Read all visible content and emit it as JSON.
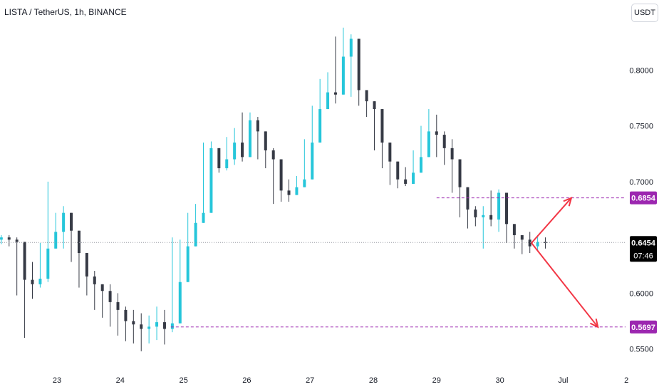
{
  "header": {
    "title": "LISTA / TetherUS, 1h, BINANCE",
    "currency_label": "USDT"
  },
  "colors": {
    "up": "#26c6da",
    "down": "#363a45",
    "current_line": "#9598a1",
    "target": "#9c27b0",
    "arrow": "#f23645",
    "last_price_bg": "#000000"
  },
  "chart_data": {
    "type": "candlestick",
    "symbol": "LISTA / TetherUS",
    "interval": "1h",
    "exchange": "BINANCE",
    "ylim": [
      0.537,
      0.85
    ],
    "y_ticks": [
      {
        "value": 0.8,
        "label": "0.8000"
      },
      {
        "value": 0.75,
        "label": "0.7500"
      },
      {
        "value": 0.7,
        "label": "0.7000"
      },
      {
        "value": 0.6,
        "label": "0.6000"
      },
      {
        "value": 0.55,
        "label": "0.5500"
      }
    ],
    "x_ticks": [
      "23",
      "24",
      "25",
      "26",
      "27",
      "28",
      "29",
      "30",
      "Jul",
      "2"
    ],
    "x_tick_positions": [
      1,
      2,
      3,
      4,
      5,
      6,
      7,
      8,
      9,
      10
    ],
    "x_range": [
      0.12,
      10.05
    ],
    "x_start": 0.12,
    "x_end": 8.72,
    "close": [
      0.65,
      0.648,
      0.646,
      0.612,
      0.608,
      0.613,
      0.64,
      0.655,
      0.672,
      0.656,
      0.636,
      0.615,
      0.608,
      0.602,
      0.592,
      0.585,
      0.575,
      0.572,
      0.568,
      0.57,
      0.574,
      0.568,
      0.573,
      0.61,
      0.642,
      0.663,
      0.672,
      0.73,
      0.712,
      0.72,
      0.735,
      0.722,
      0.755,
      0.745,
      0.728,
      0.72,
      0.692,
      0.688,
      0.695,
      0.702,
      0.735,
      0.765,
      0.78,
      0.778,
      0.812,
      0.828,
      0.782,
      0.772,
      0.765,
      0.735,
      0.718,
      0.702,
      0.698,
      0.708,
      0.722,
      0.745,
      0.742,
      0.73,
      0.72,
      0.695,
      0.675,
      0.668,
      0.67,
      0.666,
      0.69,
      0.662,
      0.652,
      0.648,
      0.642,
      0.646,
      0.645
    ],
    "high": [
      0.652,
      0.652,
      0.65,
      0.62,
      0.628,
      0.645,
      0.7,
      0.672,
      0.678,
      0.668,
      0.645,
      0.632,
      0.62,
      0.608,
      0.608,
      0.6,
      0.588,
      0.585,
      0.582,
      0.58,
      0.588,
      0.585,
      0.65,
      0.648,
      0.672,
      0.68,
      0.735,
      0.736,
      0.728,
      0.74,
      0.748,
      0.762,
      0.762,
      0.758,
      0.74,
      0.73,
      0.702,
      0.702,
      0.705,
      0.738,
      0.768,
      0.792,
      0.798,
      0.83,
      0.838,
      0.832,
      0.79,
      0.782,
      0.768,
      0.74,
      0.722,
      0.714,
      0.713,
      0.728,
      0.75,
      0.765,
      0.76,
      0.745,
      0.738,
      0.712,
      0.68,
      0.678,
      0.678,
      0.692,
      0.693,
      0.676,
      0.66,
      0.652,
      0.655,
      0.652,
      0.65
    ],
    "low": [
      0.644,
      0.642,
      0.598,
      0.56,
      0.595,
      0.605,
      0.61,
      0.64,
      0.64,
      0.628,
      0.605,
      0.598,
      0.585,
      0.578,
      0.57,
      0.562,
      0.557,
      0.555,
      0.548,
      0.555,
      0.558,
      0.554,
      0.565,
      0.605,
      0.628,
      0.648,
      0.665,
      0.7,
      0.708,
      0.71,
      0.715,
      0.718,
      0.735,
      0.72,
      0.712,
      0.68,
      0.682,
      0.682,
      0.69,
      0.7,
      0.73,
      0.758,
      0.772,
      0.77,
      0.805,
      0.776,
      0.768,
      0.758,
      0.728,
      0.712,
      0.697,
      0.694,
      0.696,
      0.705,
      0.718,
      0.735,
      0.722,
      0.715,
      0.69,
      0.668,
      0.658,
      0.66,
      0.64,
      0.66,
      0.655,
      0.645,
      0.64,
      0.635,
      0.636,
      0.638,
      0.64
    ],
    "last_price": {
      "label": "0.6454",
      "value": 0.6454,
      "countdown": "07:46"
    },
    "levels": [
      {
        "label": "0.6854",
        "value": 0.6854,
        "x_from": 7.0
      },
      {
        "label": "0.5697",
        "value": 0.5697,
        "x_from": 2.8
      }
    ],
    "arrows": {
      "origin": {
        "x": 8.5,
        "y": 0.645
      },
      "up_target": {
        "x": 9.13,
        "y": 0.6854
      },
      "down_target": {
        "x": 9.55,
        "y": 0.5697
      }
    }
  }
}
